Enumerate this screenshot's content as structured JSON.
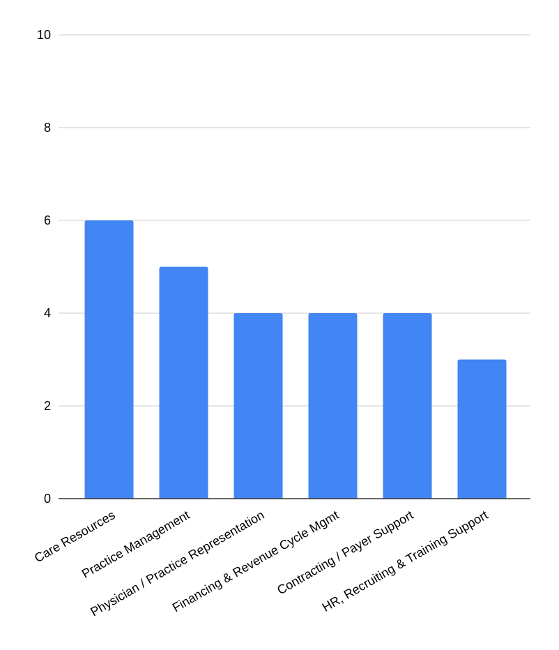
{
  "colors": {
    "bar": "#4285f4",
    "grid": "#cccccc",
    "axis": "#333333",
    "text": "#000000"
  },
  "chart_data": {
    "type": "bar",
    "title": "",
    "xlabel": "",
    "ylabel": "",
    "categories": [
      "Care Resources",
      "Practice Management",
      "Physician / Practice Representation",
      "Financing & Revenue Cycle Mgmt",
      "Contracting / Payer Support",
      "HR, Recruiting & Training Support"
    ],
    "values": [
      6,
      5,
      4,
      4,
      4,
      3
    ],
    "ylim": [
      0,
      10
    ],
    "yticks": [
      0,
      2,
      4,
      6,
      8,
      10
    ],
    "grid": true,
    "legend": "none"
  }
}
